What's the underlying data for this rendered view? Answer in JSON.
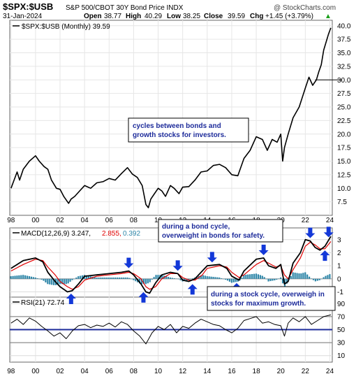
{
  "header": {
    "ticker": "$SPX:$USB",
    "description": "S&P 500/CBOT 30Y Bond Price INDX",
    "watermark": "@ StockCharts.com",
    "date": "31-Jan-2024",
    "open_label": "Open",
    "open": "38.77",
    "high_label": "High",
    "high": "40.29",
    "low_label": "Low",
    "low": "38.25",
    "close_label": "Close",
    "close": "39.59",
    "chg_label": "Chg",
    "chg": "+1.45 (+3.79%)",
    "chg_arrow": "▲"
  },
  "chart_data": [
    {
      "type": "line",
      "legend": "$SPX:$USB (Monthly) 39.59",
      "x_tick_labels": [
        "98",
        "00",
        "02",
        "04",
        "06",
        "08",
        "10",
        "12",
        "14",
        "16",
        "18",
        "20",
        "22",
        "24"
      ],
      "x_ticks_year": [
        1998,
        2000,
        2002,
        2004,
        2006,
        2008,
        2010,
        2012,
        2014,
        2016,
        2018,
        2020,
        2022,
        2024
      ],
      "y_tick_labels": [
        "7.5",
        "10.0",
        "12.5",
        "15.0",
        "17.5",
        "20.0",
        "22.5",
        "25.0",
        "27.5",
        "30.0",
        "32.5",
        "35.0",
        "37.5",
        "40.0"
      ],
      "y_ticks": [
        7.5,
        10,
        12.5,
        15,
        17.5,
        20,
        22.5,
        25,
        27.5,
        30,
        32.5,
        35,
        37.5,
        40
      ],
      "ylim": [
        5,
        41
      ],
      "xlim": [
        1997.9,
        2024.2
      ],
      "series": [
        {
          "name": "$SPX:$USB (Monthly) 39.59",
          "color": "#000000",
          "x": [
            1998.0,
            1998.5,
            1998.7,
            1999.0,
            1999.5,
            2000.0,
            2000.3,
            2000.7,
            2001.0,
            2001.3,
            2001.7,
            2002.0,
            2002.3,
            2002.7,
            2002.9,
            2003.2,
            2003.6,
            2004.0,
            2004.5,
            2005.0,
            2005.5,
            2006.0,
            2006.5,
            2007.0,
            2007.5,
            2007.9,
            2008.3,
            2008.7,
            2009.0,
            2009.2,
            2009.4,
            2009.7,
            2010.0,
            2010.3,
            2010.6,
            2011.0,
            2011.3,
            2011.7,
            2012.0,
            2012.5,
            2013.0,
            2013.5,
            2014.0,
            2014.5,
            2015.0,
            2015.5,
            2016.0,
            2016.5,
            2017.0,
            2017.5,
            2018.0,
            2018.5,
            2018.9,
            2019.3,
            2019.7,
            2020.0,
            2020.15,
            2020.3,
            2020.6,
            2021.0,
            2021.5,
            2022.0,
            2022.3,
            2022.6,
            2022.9,
            2023.1,
            2023.3,
            2023.5,
            2023.7,
            2023.9,
            2024.08
          ],
          "y": [
            10.0,
            13.0,
            11.5,
            13.5,
            15.0,
            16.0,
            15.0,
            14.0,
            13.5,
            11.5,
            10.0,
            9.8,
            8.5,
            7.2,
            8.0,
            8.5,
            9.5,
            10.5,
            10.0,
            11.0,
            11.2,
            11.8,
            11.5,
            12.7,
            13.8,
            12.6,
            12.0,
            10.5,
            7.0,
            6.4,
            8.0,
            9.0,
            10.0,
            9.5,
            8.5,
            10.5,
            10.0,
            9.0,
            10.2,
            10.3,
            11.5,
            13.0,
            13.2,
            14.2,
            14.4,
            13.8,
            12.5,
            12.3,
            15.5,
            17.0,
            19.5,
            19.0,
            17.0,
            19.0,
            18.5,
            20.0,
            15.0,
            17.5,
            20.0,
            23.0,
            25.0,
            28.5,
            30.5,
            29.0,
            30.0,
            31.5,
            32.8,
            35.5,
            37.0,
            38.5,
            39.59
          ]
        }
      ],
      "annotation": "cycles between bonds and growth stocks for investors.",
      "reference_line": 30.0,
      "grid": true
    },
    {
      "type": "line",
      "legend": "MACD(12,26,9) 3.247, 2.855, 0.392",
      "legend_main": "MACD(12,26,9) 3.247,",
      "legend_signal": "2.855,",
      "legend_hist": "0.392",
      "y_tick_labels": [
        "-1",
        "0",
        "1",
        "2",
        "3"
      ],
      "y_ticks": [
        -1,
        0,
        1,
        2,
        3
      ],
      "ylim": [
        -1.4,
        3.9
      ],
      "series": [
        {
          "name": "MACD(12,26,9) 3.247",
          "color": "#000000",
          "x": [
            1998,
            1999,
            2000,
            2000.6,
            2001,
            2001.6,
            2002,
            2002.6,
            2003,
            2003.5,
            2004,
            2005,
            2006,
            2007,
            2007.6,
            2008,
            2008.6,
            2009,
            2009.3,
            2009.8,
            2010.3,
            2011,
            2011.6,
            2012,
            2012.5,
            2013,
            2013.6,
            2014,
            2015,
            2015.6,
            2016,
            2016.6,
            2017,
            2018,
            2018.6,
            2019,
            2019.6,
            2020,
            2020.3,
            2020.6,
            2021,
            2021.6,
            2022,
            2022.4,
            2022.8,
            2023.2,
            2023.6,
            2024.08
          ],
          "y": [
            0.8,
            1.4,
            1.6,
            1.3,
            0.5,
            -0.2,
            -0.6,
            -1.0,
            -0.9,
            -0.4,
            0.2,
            0.3,
            0.4,
            0.5,
            0.6,
            0.3,
            -0.4,
            -1.0,
            -1.1,
            -0.3,
            0.3,
            0.5,
            0.4,
            -0.1,
            -0.2,
            0.0,
            0.6,
            1.0,
            1.1,
            0.8,
            0.2,
            -0.1,
            0.6,
            1.5,
            1.6,
            1.0,
            0.8,
            1.1,
            -0.4,
            -0.2,
            1.2,
            2.0,
            3.0,
            2.9,
            2.4,
            2.2,
            2.5,
            3.247
          ]
        },
        {
          "name": "2.855",
          "color": "#e00000",
          "x": [
            1998,
            1999,
            2000,
            2000.6,
            2001,
            2001.6,
            2002,
            2002.6,
            2003,
            2003.5,
            2004,
            2005,
            2006,
            2007,
            2007.6,
            2008,
            2008.6,
            2009,
            2009.3,
            2009.8,
            2010.3,
            2011,
            2011.6,
            2012,
            2012.5,
            2013,
            2013.6,
            2014,
            2015,
            2015.6,
            2016,
            2016.6,
            2017,
            2018,
            2018.6,
            2019,
            2019.6,
            2020,
            2020.3,
            2020.6,
            2021,
            2021.6,
            2022,
            2022.4,
            2022.8,
            2023.2,
            2023.6,
            2024.08
          ],
          "y": [
            0.6,
            1.1,
            1.5,
            1.4,
            0.9,
            0.3,
            -0.2,
            -0.6,
            -0.8,
            -0.6,
            -0.1,
            0.2,
            0.3,
            0.4,
            0.5,
            0.4,
            0.0,
            -0.6,
            -0.8,
            -0.6,
            0.0,
            0.4,
            0.4,
            0.1,
            -0.1,
            -0.1,
            0.3,
            0.8,
            1.0,
            0.9,
            0.5,
            0.1,
            0.3,
            1.1,
            1.4,
            1.2,
            0.9,
            1.0,
            0.3,
            0.0,
            0.7,
            1.6,
            2.5,
            2.8,
            2.6,
            2.3,
            2.3,
            2.855
          ]
        },
        {
          "name": "0.392",
          "type": "bar",
          "color": "#2e86a8",
          "x": [
            1998,
            1999,
            2000,
            2000.6,
            2001,
            2001.6,
            2002,
            2002.6,
            2003,
            2003.5,
            2004,
            2005,
            2006,
            2007,
            2007.6,
            2008,
            2008.6,
            2009,
            2009.3,
            2009.8,
            2010.3,
            2011,
            2011.6,
            2012,
            2012.5,
            2013,
            2013.6,
            2014,
            2015,
            2015.6,
            2016,
            2016.6,
            2017,
            2018,
            2018.6,
            2019,
            2019.6,
            2020,
            2020.3,
            2020.6,
            2021,
            2021.6,
            2022,
            2022.4,
            2022.8,
            2023.2,
            2023.6,
            2024.08
          ],
          "y": [
            0.2,
            0.3,
            0.1,
            -0.1,
            -0.4,
            -0.5,
            -0.4,
            -0.4,
            -0.1,
            0.2,
            0.3,
            0.1,
            0.1,
            0.1,
            0.1,
            -0.1,
            -0.4,
            -0.4,
            -0.3,
            0.3,
            0.3,
            0.1,
            0.0,
            -0.2,
            -0.1,
            0.1,
            0.3,
            0.2,
            0.1,
            -0.1,
            -0.3,
            -0.2,
            0.3,
            0.4,
            0.2,
            -0.2,
            -0.1,
            0.1,
            -0.7,
            -0.2,
            0.5,
            0.4,
            0.5,
            0.1,
            -0.2,
            -0.1,
            0.2,
            0.392
          ]
        }
      ],
      "annotations": [
        "during a bond cycle, overweight in bonds for safety.",
        "during a stock cycle, overweigh in stocks for maximum growth."
      ],
      "down_arrows_x": [
        2007.6,
        2011.6,
        2014.4,
        2018.6,
        2022.4,
        2023.9
      ],
      "up_arrows_x": [
        2002.9,
        2008.8,
        2012.8,
        2016.4,
        2020.3,
        2023.6
      ]
    },
    {
      "type": "line",
      "legend": "RSI(21) 72.74",
      "y_tick_labels": [
        "90",
        "70",
        "50",
        "30",
        "10"
      ],
      "y_ticks": [
        90,
        70,
        50,
        30,
        10
      ],
      "ylim": [
        0,
        100
      ],
      "level_line": 50,
      "series": [
        {
          "name": "RSI(21) 72.74",
          "color": "#000000",
          "x": [
            1998,
            1998.5,
            1999,
            1999.5,
            2000,
            2000.5,
            2001,
            2001.5,
            2002,
            2002.5,
            2003,
            2003.5,
            2004,
            2004.5,
            2005,
            2005.5,
            2006,
            2006.5,
            2007,
            2007.5,
            2008,
            2008.5,
            2009,
            2009.5,
            2010,
            2010.5,
            2011,
            2011.5,
            2012,
            2012.5,
            2013,
            2013.5,
            2014,
            2014.5,
            2015,
            2015.5,
            2016,
            2016.5,
            2017,
            2017.5,
            2018,
            2018.5,
            2019,
            2019.5,
            2020,
            2020.3,
            2020.6,
            2021,
            2021.5,
            2022,
            2022.5,
            2023,
            2023.5,
            2024.08
          ],
          "y": [
            60,
            66,
            58,
            68,
            63,
            55,
            48,
            40,
            45,
            36,
            48,
            56,
            58,
            53,
            57,
            55,
            60,
            54,
            62,
            58,
            48,
            40,
            28,
            45,
            55,
            50,
            58,
            45,
            55,
            52,
            60,
            66,
            62,
            58,
            56,
            50,
            45,
            52,
            64,
            67,
            70,
            60,
            62,
            58,
            56,
            40,
            60,
            68,
            62,
            70,
            58,
            64,
            70,
            72.74
          ]
        }
      ]
    }
  ]
}
